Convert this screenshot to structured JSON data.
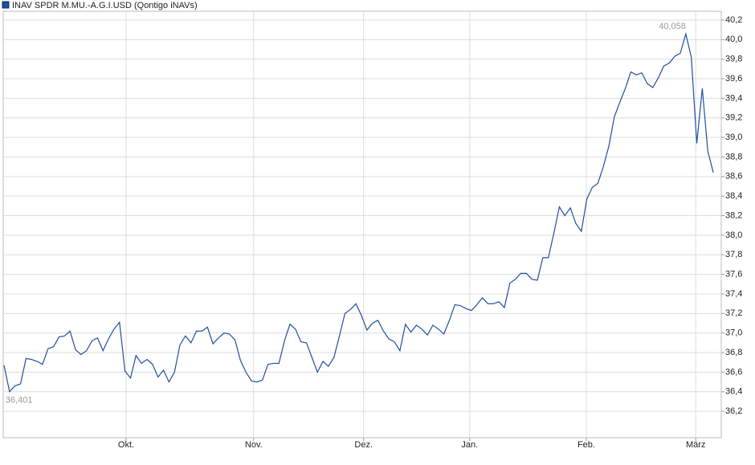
{
  "chart_data": {
    "type": "line",
    "series": [
      {
        "name": "INAV SPDR M.MU.-A.G.I.USD (Qontigo iNAVs)",
        "color": "#1f4f9e",
        "values": [
          36.67,
          36.401,
          36.46,
          36.48,
          36.74,
          36.73,
          36.71,
          36.68,
          36.84,
          36.86,
          36.96,
          36.97,
          37.02,
          36.83,
          36.78,
          36.82,
          36.92,
          36.95,
          36.82,
          36.94,
          37.04,
          37.11,
          36.61,
          36.54,
          36.77,
          36.69,
          36.73,
          36.68,
          36.55,
          36.62,
          36.5,
          36.6,
          36.88,
          36.97,
          36.9,
          37.02,
          37.02,
          37.06,
          36.89,
          36.95,
          37.0,
          36.99,
          36.93,
          36.72,
          36.6,
          36.51,
          36.5,
          36.52,
          36.68,
          36.69,
          36.69,
          36.92,
          37.09,
          37.04,
          36.91,
          36.9,
          36.75,
          36.6,
          36.71,
          36.66,
          36.75,
          36.97,
          37.2,
          37.24,
          37.3,
          37.18,
          37.03,
          37.1,
          37.13,
          37.02,
          36.94,
          36.91,
          36.82,
          37.09,
          37.01,
          37.08,
          37.04,
          36.98,
          37.08,
          37.04,
          36.99,
          37.13,
          37.29,
          37.28,
          37.25,
          37.23,
          37.29,
          37.36,
          37.3,
          37.3,
          37.32,
          37.26,
          37.51,
          37.55,
          37.61,
          37.61,
          37.55,
          37.54,
          37.77,
          37.77,
          38.02,
          38.29,
          38.2,
          38.28,
          38.12,
          38.04,
          38.37,
          38.49,
          38.53,
          38.7,
          38.91,
          39.21,
          39.36,
          39.5,
          39.67,
          39.64,
          39.66,
          39.55,
          39.51,
          39.61,
          39.73,
          39.76,
          39.83,
          39.86,
          40.058,
          39.82,
          38.94,
          39.5,
          38.86,
          38.64
        ]
      }
    ],
    "high_label": "40,058",
    "low_label": "36,401",
    "xlim": [
      -0.15,
      130.45
    ],
    "xticks": [
      {
        "value": 22.2,
        "label": "Okt."
      },
      {
        "value": 45.4,
        "label": "Nov."
      },
      {
        "value": 65.4,
        "label": "Dez."
      },
      {
        "value": 84.7,
        "label": "Jan."
      },
      {
        "value": 105.9,
        "label": "Feb."
      },
      {
        "value": 125.8,
        "label": "März"
      }
    ],
    "ylim": [
      35.93,
      40.29
    ],
    "yticks": [
      {
        "value": 36.2,
        "label": "36,2"
      },
      {
        "value": 36.4,
        "label": "36,4"
      },
      {
        "value": 36.6,
        "label": "36,6"
      },
      {
        "value": 36.8,
        "label": "36,8"
      },
      {
        "value": 37.0,
        "label": "37,0"
      },
      {
        "value": 37.2,
        "label": "37,2"
      },
      {
        "value": 37.4,
        "label": "37,4"
      },
      {
        "value": 37.6,
        "label": "37,6"
      },
      {
        "value": 37.8,
        "label": "37,8"
      },
      {
        "value": 38.0,
        "label": "38,0"
      },
      {
        "value": 38.2,
        "label": "38,2"
      },
      {
        "value": 38.4,
        "label": "38,4"
      },
      {
        "value": 38.6,
        "label": "38,6"
      },
      {
        "value": 38.8,
        "label": "38,8"
      },
      {
        "value": 39.0,
        "label": "39,0"
      },
      {
        "value": 39.2,
        "label": "39,2"
      },
      {
        "value": 39.4,
        "label": "39,4"
      },
      {
        "value": 39.6,
        "label": "39,6"
      },
      {
        "value": 39.8,
        "label": "39,8"
      },
      {
        "value": 40.0,
        "label": "40,0"
      },
      {
        "value": 40.2,
        "label": "40,2"
      }
    ],
    "grid": true
  }
}
